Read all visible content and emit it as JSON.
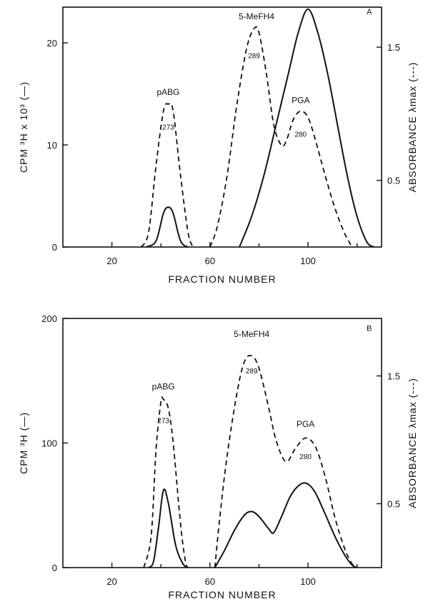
{
  "chart_data": [
    {
      "type": "line",
      "panel": "A",
      "xlabel": "FRACTION NUMBER",
      "ylabel_left": "CPM ³H x 10³ (—)",
      "ylabel_right": "ABSORBANCE λmax (---)",
      "xlim": [
        0,
        130
      ],
      "ylim": [
        0,
        23.5
      ],
      "ylim_right": [
        0,
        1.8
      ],
      "x_ticks": [
        20,
        60,
        100
      ],
      "y_ticks": [
        0,
        10,
        20
      ],
      "y2_ticks": [
        0.5,
        1.5
      ],
      "grid": false,
      "series": [
        {
          "style": "solid",
          "axis": "left",
          "points": [
            [
              34,
              0
            ],
            [
              38,
              0.6
            ],
            [
              41,
              3.3
            ],
            [
              43,
              3.9
            ],
            [
              45,
              3.3
            ],
            [
              48,
              0.6
            ],
            [
              51,
              0
            ],
            [
              72,
              0
            ],
            [
              77,
              3
            ],
            [
              82,
              7
            ],
            [
              87,
              12
            ],
            [
              92,
              17
            ],
            [
              96,
              21
            ],
            [
              100,
              23.3
            ],
            [
              104,
              21
            ],
            [
              108,
              17
            ],
            [
              112,
              12
            ],
            [
              116,
              7
            ],
            [
              120,
              3
            ],
            [
              124,
              0.5
            ],
            [
              127,
              0
            ]
          ]
        },
        {
          "style": "dashed",
          "axis": "left",
          "points": [
            [
              32,
              0
            ],
            [
              35,
              1.5
            ],
            [
              38,
              8
            ],
            [
              41,
              13.3
            ],
            [
              43,
              14
            ],
            [
              45,
              13.3
            ],
            [
              48,
              7
            ],
            [
              51,
              1.5
            ],
            [
              53,
              0
            ],
            [
              60,
              0
            ],
            [
              63,
              2
            ],
            [
              67,
              7
            ],
            [
              71,
              14
            ],
            [
              75,
              19.5
            ],
            [
              78,
              21.4
            ],
            [
              80,
              21
            ],
            [
              83,
              17
            ],
            [
              86,
              12
            ],
            [
              89,
              10
            ],
            [
              91,
              10.3
            ],
            [
              94,
              12.5
            ],
            [
              97,
              13.3
            ],
            [
              100,
              12.7
            ],
            [
              103,
              10.5
            ],
            [
              107,
              7
            ],
            [
              111,
              3.8
            ],
            [
              115,
              1.3
            ],
            [
              118,
              0
            ]
          ]
        }
      ],
      "annotations": [
        {
          "text": "pABG",
          "x": 43,
          "y": 14.9
        },
        {
          "text": "273",
          "x": 43,
          "y": 11.5
        },
        {
          "text": "5-MeFH4",
          "x": 79,
          "y": 22.3
        },
        {
          "text": "289",
          "x": 78,
          "y": 18.5
        },
        {
          "text": "PGA",
          "x": 97,
          "y": 14.1
        },
        {
          "text": "280",
          "x": 97,
          "y": 10.8
        },
        {
          "text": "A",
          "x": 125,
          "y": 22.8
        }
      ]
    },
    {
      "type": "line",
      "panel": "B",
      "xlabel": "FRACTION NUMBER",
      "ylabel_left": "CPM ³H (—)",
      "ylabel_right": "ABSORBANCE λmax (---)",
      "xlim": [
        0,
        130
      ],
      "ylim": [
        0,
        200
      ],
      "ylim_right": [
        0,
        1.95
      ],
      "x_ticks": [
        20,
        60,
        100
      ],
      "y_ticks": [
        0,
        100,
        200
      ],
      "y2_ticks": [
        0.5,
        1.5
      ],
      "grid": false,
      "series": [
        {
          "style": "solid",
          "axis": "left",
          "points": [
            [
              35,
              0
            ],
            [
              37,
              5
            ],
            [
              39,
              32
            ],
            [
              41,
              62
            ],
            [
              43,
              52
            ],
            [
              46,
              18
            ],
            [
              49,
              3
            ],
            [
              51,
              0
            ],
            [
              62,
              0
            ],
            [
              66,
              14
            ],
            [
              70,
              30
            ],
            [
              74,
              42
            ],
            [
              77,
              45
            ],
            [
              80,
              41
            ],
            [
              84,
              31
            ],
            [
              86,
              28
            ],
            [
              89,
              40
            ],
            [
              93,
              58
            ],
            [
              97,
              67
            ],
            [
              100,
              67
            ],
            [
              103,
              60
            ],
            [
              107,
              43
            ],
            [
              111,
              25
            ],
            [
              115,
              10
            ],
            [
              118,
              2
            ],
            [
              120,
              0
            ]
          ]
        },
        {
          "style": "dashed",
          "axis": "left",
          "points": [
            [
              33,
              0
            ],
            [
              36,
              25
            ],
            [
              38,
              95
            ],
            [
              40,
              133
            ],
            [
              41,
              135
            ],
            [
              43,
              128
            ],
            [
              45,
              100
            ],
            [
              48,
              35
            ],
            [
              50,
              5
            ],
            [
              51,
              0
            ],
            [
              62,
              0
            ],
            [
              64,
              40
            ],
            [
              67,
              90
            ],
            [
              71,
              140
            ],
            [
              74,
              165
            ],
            [
              77,
              170
            ],
            [
              80,
              160
            ],
            [
              84,
              128
            ],
            [
              87,
              102
            ],
            [
              91,
              85
            ],
            [
              95,
              96
            ],
            [
              99,
              104
            ],
            [
              103,
              97
            ],
            [
              107,
              73
            ],
            [
              111,
              40
            ],
            [
              115,
              15
            ],
            [
              118,
              3
            ],
            [
              120,
              0
            ]
          ]
        }
      ],
      "annotations": [
        {
          "text": "pABG",
          "x": 41,
          "y": 143
        },
        {
          "text": "273",
          "x": 41,
          "y": 116
        },
        {
          "text": "5-MeFH4",
          "x": 77,
          "y": 185
        },
        {
          "text": "289",
          "x": 77,
          "y": 156
        },
        {
          "text": "PGA",
          "x": 99,
          "y": 113
        },
        {
          "text": "280",
          "x": 99,
          "y": 87
        },
        {
          "text": "B",
          "x": 125,
          "y": 190
        }
      ]
    }
  ]
}
